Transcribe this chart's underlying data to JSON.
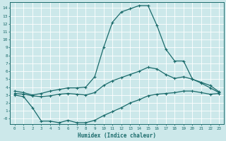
{
  "xlabel": "Humidex (Indice chaleur)",
  "ylabel": "",
  "bg_color": "#cce8ea",
  "line_color": "#1a6b6b",
  "grid_color": "#b8d8da",
  "xlim": [
    -0.5,
    23.5
  ],
  "ylim": [
    -0.7,
    14.7
  ],
  "xticks": [
    0,
    1,
    2,
    3,
    4,
    5,
    6,
    7,
    8,
    9,
    10,
    11,
    12,
    13,
    14,
    15,
    16,
    17,
    18,
    19,
    20,
    21,
    22,
    23
  ],
  "yticks": [
    14,
    13,
    12,
    11,
    10,
    9,
    8,
    7,
    6,
    5,
    4,
    3,
    2,
    1,
    0
  ],
  "ytick_labels": [
    "14",
    "13",
    "12",
    "11",
    "10",
    "9",
    "8",
    "7",
    "6",
    "5",
    "4",
    "3",
    "2",
    "1",
    "-0"
  ],
  "curve_top_x": [
    0,
    1,
    2,
    3,
    4,
    5,
    6,
    7,
    8,
    9,
    10,
    11,
    12,
    13,
    14,
    15,
    16,
    17,
    18,
    19,
    20,
    21,
    22,
    23
  ],
  "curve_top_y": [
    3.5,
    3.3,
    3.0,
    3.2,
    3.5,
    3.7,
    3.9,
    3.9,
    4.0,
    5.3,
    9.0,
    12.2,
    13.5,
    13.9,
    14.3,
    14.3,
    11.8,
    8.8,
    7.3,
    7.3,
    5.0,
    4.5,
    3.9,
    3.3
  ],
  "curve_mid_x": [
    0,
    1,
    2,
    3,
    4,
    5,
    6,
    7,
    8,
    9,
    10,
    11,
    12,
    13,
    14,
    15,
    16,
    17,
    18,
    19,
    20,
    21,
    22,
    23
  ],
  "curve_mid_y": [
    3.2,
    3.1,
    2.9,
    2.8,
    2.9,
    3.1,
    3.2,
    3.1,
    3.0,
    3.3,
    4.2,
    4.8,
    5.2,
    5.6,
    6.0,
    6.5,
    6.3,
    5.6,
    5.1,
    5.3,
    5.0,
    4.6,
    4.2,
    3.4
  ],
  "curve_bot_x": [
    0,
    1,
    2,
    3,
    4,
    5,
    6,
    7,
    8,
    9,
    10,
    11,
    12,
    13,
    14,
    15,
    16,
    17,
    18,
    19,
    20,
    21,
    22,
    23
  ],
  "curve_bot_y": [
    3.0,
    2.8,
    1.4,
    -0.3,
    -0.3,
    -0.5,
    -0.2,
    -0.5,
    -0.5,
    -0.2,
    0.4,
    0.9,
    1.4,
    2.0,
    2.4,
    2.9,
    3.1,
    3.2,
    3.3,
    3.5,
    3.5,
    3.3,
    3.1,
    3.2
  ]
}
